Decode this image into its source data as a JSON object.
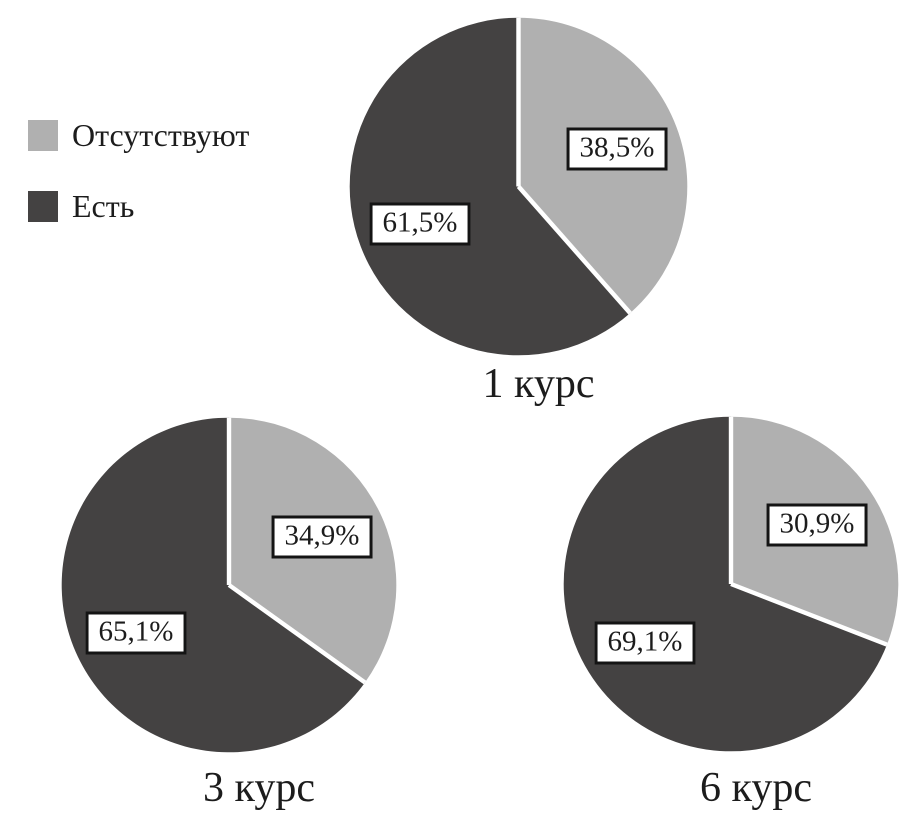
{
  "page": {
    "background": "#ffffff"
  },
  "chart_data": {
    "type": "pie",
    "title": "",
    "grid": false,
    "legend_position": "top-left",
    "decimal_separator": ",",
    "colors": {
      "absent": "#b0b0b0",
      "present": "#444242",
      "divider": "#ffffff",
      "label_border": "#141414"
    },
    "legend": {
      "items": [
        {
          "key": "absent",
          "label": "Отсутствуют",
          "color": "#b0b0b0"
        },
        {
          "key": "present",
          "label": "Есть",
          "color": "#444242"
        }
      ]
    },
    "pies": [
      {
        "caption": "1 курс",
        "slices": [
          {
            "key": "absent",
            "name": "Отсутствуют",
            "value": 38.5,
            "label": "38,5%",
            "color": "#b0b0b0"
          },
          {
            "key": "present",
            "name": "Есть",
            "value": 61.5,
            "label": "61,5%",
            "color": "#444242"
          }
        ]
      },
      {
        "caption": "3 курс",
        "slices": [
          {
            "key": "absent",
            "name": "Отсутствуют",
            "value": 34.9,
            "label": "34,9%",
            "color": "#b0b0b0"
          },
          {
            "key": "present",
            "name": "Есть",
            "value": 65.1,
            "label": "65,1%",
            "color": "#444242"
          }
        ]
      },
      {
        "caption": "6 курс",
        "slices": [
          {
            "key": "absent",
            "name": "Отсутствуют",
            "value": 30.9,
            "label": "30,9%",
            "color": "#b0b0b0"
          },
          {
            "key": "present",
            "name": "Есть",
            "value": 69.1,
            "label": "69,1%",
            "color": "#444242"
          }
        ]
      }
    ],
    "start_angle": "12-o'clock",
    "direction": "clockwise"
  }
}
